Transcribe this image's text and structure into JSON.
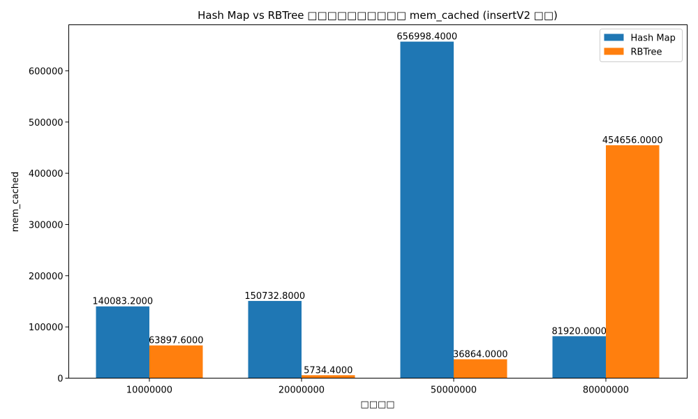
{
  "chart_data": {
    "type": "bar",
    "title": "Hash Map vs RBTree □□□□□□□□□□ mem_cached (insertV2 □□)",
    "xlabel": "□□□□",
    "ylabel": "mem_cached",
    "categories": [
      "10000000",
      "20000000",
      "50000000",
      "80000000"
    ],
    "series": [
      {
        "name": "Hash Map",
        "color": "#1f77b4",
        "values": [
          140083.2,
          150732.8,
          656998.4,
          81920.0
        ],
        "labels": [
          "140083.2000",
          "150732.8000",
          "656998.4000",
          "81920.0000"
        ]
      },
      {
        "name": "RBTree",
        "color": "#ff7f0e",
        "values": [
          63897.6,
          5734.4,
          36864.0,
          454656.0
        ],
        "labels": [
          "63897.6000",
          "5734.4000",
          "36864.0000",
          "454656.0000"
        ]
      }
    ],
    "ylim": [
      0,
      689848
    ],
    "yticks": [
      0,
      100000,
      200000,
      300000,
      400000,
      500000,
      600000
    ],
    "ytick_labels": [
      "0",
      "100000",
      "200000",
      "300000",
      "400000",
      "500000",
      "600000"
    ],
    "legend_position": "top-right",
    "grid": false
  }
}
